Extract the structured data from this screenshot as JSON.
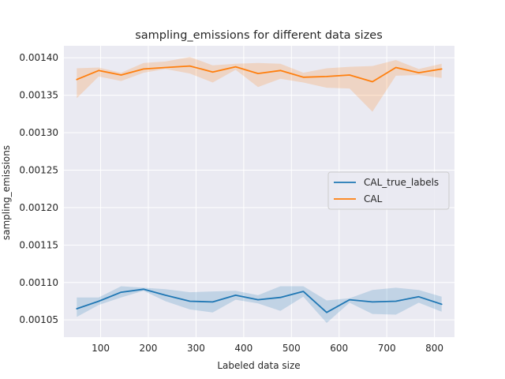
{
  "chart_data": {
    "type": "line",
    "title": "sampling_emissions for different data sizes",
    "xlabel": "Labeled data size",
    "ylabel": "sampling_emissions",
    "xlim": [
      23,
      842
    ],
    "ylim": [
      0.001027,
      0.001416
    ],
    "x_ticks": [
      100,
      200,
      300,
      400,
      500,
      600,
      700,
      800
    ],
    "y_ticks": [
      {
        "value": 0.00105,
        "label": "0.00105"
      },
      {
        "value": 0.0011,
        "label": "0.00110"
      },
      {
        "value": 0.00115,
        "label": "0.00115"
      },
      {
        "value": 0.0012,
        "label": "0.00120"
      },
      {
        "value": 0.00125,
        "label": "0.00125"
      },
      {
        "value": 0.0013,
        "label": "0.00130"
      },
      {
        "value": 0.00135,
        "label": "0.00135"
      },
      {
        "value": 0.0014,
        "label": "0.00140"
      }
    ],
    "grid": true,
    "legend_position": "center-right",
    "background": "#eaeaf2",
    "x": [
      50,
      96,
      143,
      190,
      236,
      287,
      335,
      383,
      430,
      477,
      525,
      574,
      622,
      670,
      719,
      767,
      815
    ],
    "series": [
      {
        "name": "CAL_true_labels",
        "color": "#1f77b4",
        "values": [
          0.001065,
          0.001075,
          0.001087,
          0.001091,
          0.001083,
          0.001075,
          0.001074,
          0.001083,
          0.001077,
          0.00108,
          0.001088,
          0.00106,
          0.001077,
          0.001074,
          0.001075,
          0.001081,
          0.001071
        ],
        "lower": [
          0.001054,
          0.00107,
          0.00108,
          0.001089,
          0.001075,
          0.001064,
          0.00106,
          0.001077,
          0.001072,
          0.001062,
          0.001081,
          0.001046,
          0.001073,
          0.001058,
          0.001057,
          0.001073,
          0.001061
        ],
        "upper": [
          0.00108,
          0.00108,
          0.001095,
          0.001093,
          0.001091,
          0.001087,
          0.001088,
          0.001089,
          0.001083,
          0.001095,
          0.001095,
          0.001076,
          0.001079,
          0.00109,
          0.001093,
          0.00109,
          0.001081
        ]
      },
      {
        "name": "CAL",
        "color": "#ff7f0e",
        "values": [
          0.001371,
          0.001383,
          0.001377,
          0.001385,
          0.001387,
          0.001389,
          0.001381,
          0.001388,
          0.001379,
          0.001383,
          0.001374,
          0.001375,
          0.001377,
          0.001368,
          0.001387,
          0.00138,
          0.001385
        ],
        "lower": [
          0.001346,
          0.001375,
          0.001369,
          0.00138,
          0.001385,
          0.001379,
          0.001367,
          0.001384,
          0.001361,
          0.001372,
          0.001367,
          0.00136,
          0.001359,
          0.001328,
          0.001376,
          0.001377,
          0.001373
        ],
        "upper": [
          0.001386,
          0.001387,
          0.00138,
          0.001393,
          0.001395,
          0.001401,
          0.00139,
          0.001392,
          0.001393,
          0.001392,
          0.00138,
          0.001386,
          0.001388,
          0.001389,
          0.001397,
          0.001385,
          0.001392
        ]
      }
    ]
  }
}
